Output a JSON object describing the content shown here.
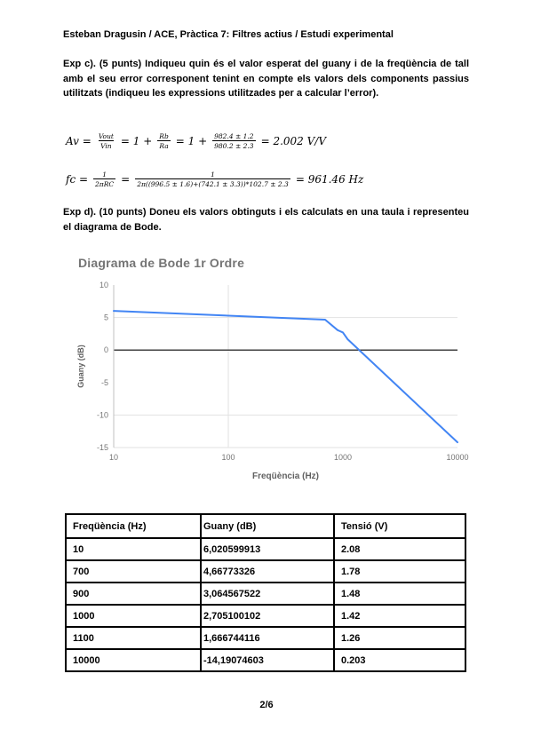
{
  "header": {
    "title": "Esteban Dragusin / ACE, Pràctica 7: Filtres actius / Estudi experimental"
  },
  "paragraphs": {
    "exp_c": "Exp c). (5 punts) Indiqueu quin és el valor esperat del guany i de la freqüència de tall amb el seu error corresponent tenint en compte els valors dels components passius utilitzats (indiqueu les expressions utilitzades per a calcular l’error).",
    "exp_d": "Exp d). (10 punts) Doneu els valors obtinguts i els calculats en una taula i representeu el diagrama de Bode."
  },
  "formulas": [
    {
      "name": "gain-formula",
      "segments": [
        {
          "t": "txt",
          "v": "Av ="
        },
        {
          "t": "frac",
          "num": "Vout",
          "den": "Vin"
        },
        {
          "t": "txt",
          "v": "= 1 +"
        },
        {
          "t": "frac",
          "num": "Rb",
          "den": "Ra"
        },
        {
          "t": "txt",
          "v": "= 1 +"
        },
        {
          "t": "frac",
          "num": "982.4 ± 1.2",
          "den": "980.2 ± 2.3"
        },
        {
          "t": "txt",
          "v": "= 2.002 V/V"
        }
      ]
    },
    {
      "name": "cutoff-formula",
      "segments": [
        {
          "t": "txt",
          "v": "fc ="
        },
        {
          "t": "frac",
          "num": "1",
          "den": "2πRC"
        },
        {
          "t": "txt",
          "v": "="
        },
        {
          "t": "frac",
          "num": "1",
          "den": "2π((996.5 ± 1.6)+(742.1 ± 3.3))*102.7 ± 2.3"
        },
        {
          "t": "txt",
          "v": "= 961.46 Hz"
        }
      ]
    }
  ],
  "chart_data": {
    "type": "line",
    "title": "Diagrama de Bode 1r Ordre",
    "xlabel": "Freqüència (Hz)",
    "ylabel": "Guany (dB)",
    "x_scale": "log",
    "xlim": [
      10,
      10000
    ],
    "ylim": [
      -15,
      10
    ],
    "x_ticks": [
      "10",
      "100",
      "1000",
      "10000"
    ],
    "y_ticks": [
      "10",
      "5",
      "0",
      "-5",
      "-10",
      "-15"
    ],
    "grid": {
      "h_light": [
        5,
        -10,
        -15
      ],
      "h_dark": [
        0
      ],
      "v_light": [
        100
      ]
    },
    "legend": "none",
    "colors": {
      "line": "#4285f4",
      "title": "#757575",
      "tick_label": "#757575",
      "axis_title": "#616161",
      "grid_light": "#e2e2e2",
      "grid_dark": "#424242",
      "axis_line": "#c0c0c0"
    },
    "series": [
      {
        "name": "Guany (dB)",
        "x": [
          10,
          700,
          900,
          1000,
          1100,
          10000
        ],
        "y": [
          6.020599913,
          4.66773326,
          3.064567522,
          2.705100102,
          1.666744116,
          -14.19074603
        ]
      }
    ]
  },
  "table": {
    "headers": [
      "Freqüència (Hz)",
      "Guany (dB)",
      "Tensió (V)"
    ],
    "rows": [
      [
        "10",
        "6,020599913",
        "2.08"
      ],
      [
        "700",
        "4,66773326",
        "1.78"
      ],
      [
        "900",
        "3,064567522",
        "1.48"
      ],
      [
        "1000",
        "2,705100102",
        "1.42"
      ],
      [
        "1100",
        "1,666744116",
        "1.26"
      ],
      [
        "10000",
        "-14,19074603",
        "0.203"
      ]
    ]
  },
  "footer": {
    "page": "2/6"
  }
}
